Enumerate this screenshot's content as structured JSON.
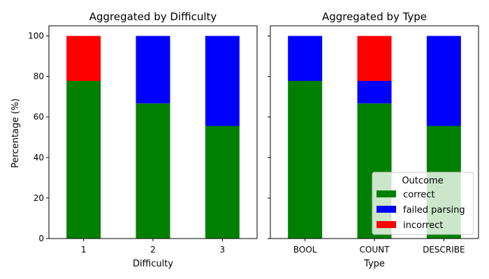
{
  "chart_data": [
    {
      "type": "bar",
      "stacked": true,
      "title": "Aggregated by Difficulty",
      "xlabel": "Difficulty",
      "ylabel": "Percentage (%)",
      "ylim": [
        0,
        105
      ],
      "yticks": [
        "0",
        "20",
        "40",
        "60",
        "80",
        "100"
      ],
      "categories": [
        "1",
        "2",
        "3"
      ],
      "series": [
        {
          "name": "correct",
          "color": "#008000",
          "values": [
            77.8,
            66.7,
            55.6
          ]
        },
        {
          "name": "failed parsing",
          "color": "#0000ff",
          "values": [
            0,
            33.3,
            44.4
          ]
        },
        {
          "name": "incorrect",
          "color": "#ff0000",
          "values": [
            22.2,
            0,
            0
          ]
        }
      ]
    },
    {
      "type": "bar",
      "stacked": true,
      "title": "Aggregated by Type",
      "xlabel": "Type",
      "ylabel": "",
      "ylim": [
        0,
        105
      ],
      "categories": [
        "BOOL",
        "COUNT",
        "DESCRIBE"
      ],
      "series": [
        {
          "name": "correct",
          "color": "#008000",
          "values": [
            77.8,
            66.7,
            55.6
          ]
        },
        {
          "name": "failed parsing",
          "color": "#0000ff",
          "values": [
            22.2,
            11.1,
            44.4
          ]
        },
        {
          "name": "incorrect",
          "color": "#ff0000",
          "values": [
            0,
            22.2,
            0
          ]
        }
      ]
    }
  ],
  "legend": {
    "title": "Outcome",
    "position": "lower-right of right panel",
    "items": [
      {
        "label": "correct",
        "color": "#008000"
      },
      {
        "label": "failed parsing",
        "color": "#0000ff"
      },
      {
        "label": "incorrect",
        "color": "#ff0000"
      }
    ]
  }
}
